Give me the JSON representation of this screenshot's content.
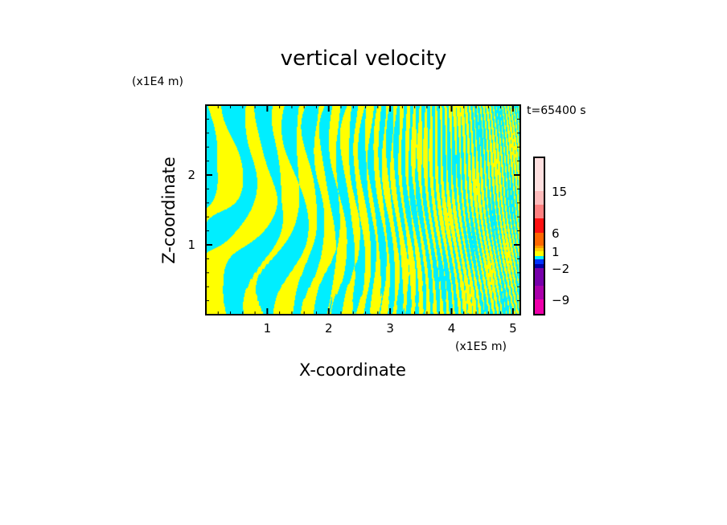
{
  "chart_data": {
    "type": "heatmap",
    "title": "vertical velocity",
    "xlabel": "X-coordinate",
    "ylabel": "Z-coordinate",
    "x_unit": "(x1E5 m)",
    "y_unit": "(x1E4 m)",
    "time_label": "t=65400 s",
    "xlim": [
      0,
      5.12
    ],
    "ylim": [
      0,
      3.0
    ],
    "x_ticks": [
      "1",
      "2",
      "3",
      "4",
      "5"
    ],
    "x_tick_values": [
      1,
      2,
      3,
      4,
      5
    ],
    "y_ticks": [
      "1",
      "2"
    ],
    "y_tick_values": [
      1,
      2
    ],
    "field_colors": {
      "positive_small": "#ffff00",
      "negative_small": "#00eeff"
    },
    "colorbar": {
      "labels": [
        "15",
        "6",
        "1",
        "−2",
        "−9"
      ],
      "colors_top_to_bottom": [
        "#ffe0e0",
        "#ffbbbb",
        "#ff8080",
        "#ff1111",
        "#ff6600",
        "#ff9900",
        "#ffcc00",
        "#ffff00",
        "#00eeff",
        "#0033ff",
        "#0000aa",
        "#7700aa",
        "#aa00aa",
        "#ee00aa"
      ]
    }
  }
}
